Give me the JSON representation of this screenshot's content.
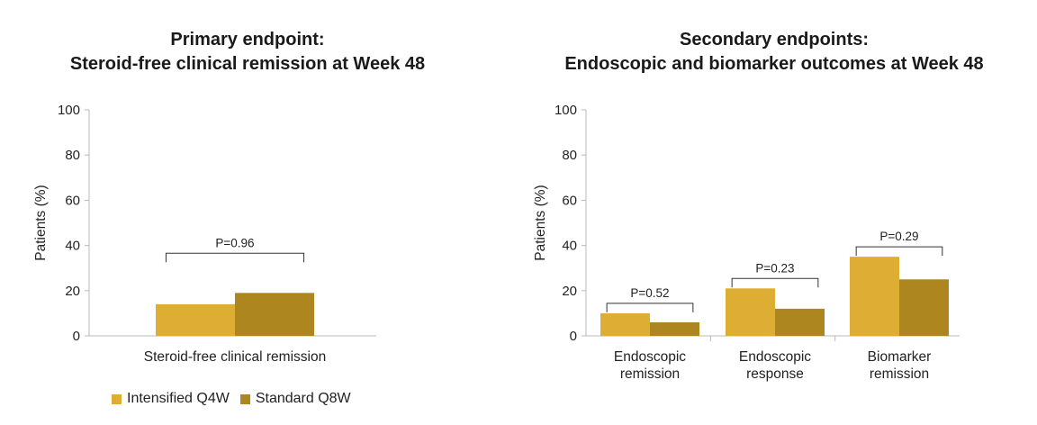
{
  "colors": {
    "intensified": "#DDAE33",
    "standard": "#AE8620"
  },
  "legend": {
    "intensified": "Intensified Q4W",
    "standard": "Standard Q8W"
  },
  "chart_data": [
    {
      "type": "bar",
      "title_lines": [
        "Primary endpoint:",
        "Steroid-free clinical remission at Week 48"
      ],
      "ylabel": "Patients (%)",
      "ylim": [
        0,
        100
      ],
      "yticks": [
        "0",
        "20",
        "40",
        "60",
        "80",
        "100"
      ],
      "categories": [
        [
          "Steroid-free clinical remission"
        ]
      ],
      "series": [
        {
          "name": "Intensified Q4W",
          "values": [
            14
          ]
        },
        {
          "name": "Standard Q8W",
          "values": [
            19
          ]
        }
      ],
      "p_values": [
        "P=0.96"
      ],
      "legend_position": "bottom-left",
      "grid": false
    },
    {
      "type": "bar",
      "title_lines": [
        "Secondary endpoints:",
        "Endoscopic and biomarker outcomes at Week 48"
      ],
      "ylabel": "Patients (%)",
      "ylim": [
        0,
        100
      ],
      "yticks": [
        "0",
        "20",
        "40",
        "60",
        "80",
        "100"
      ],
      "categories": [
        [
          "Endoscopic",
          "remission"
        ],
        [
          "Endoscopic",
          "response"
        ],
        [
          "Biomarker",
          "remission"
        ]
      ],
      "series": [
        {
          "name": "Intensified Q4W",
          "values": [
            10,
            21,
            35
          ]
        },
        {
          "name": "Standard Q8W",
          "values": [
            6,
            12,
            25
          ]
        }
      ],
      "p_values": [
        "P=0.52",
        "P=0.23",
        "P=0.29"
      ],
      "grid": false
    }
  ]
}
